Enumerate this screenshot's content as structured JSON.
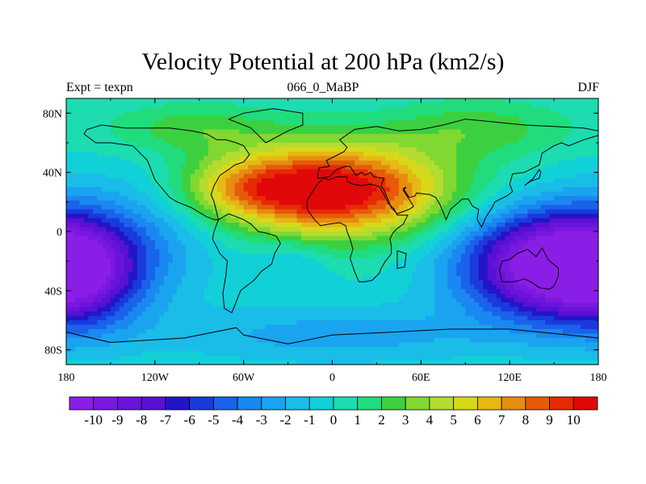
{
  "chart_data": {
    "type": "heatmap",
    "title": "Velocity Potential at 200 hPa (km2/s)",
    "left_string": "Expt = texpn",
    "center_string": "066_0_MaBP",
    "right_string": "DJF",
    "x_ticks": [
      "180",
      "120W",
      "60W",
      "0",
      "60E",
      "120E",
      "180"
    ],
    "y_ticks": [
      "80N",
      "40N",
      "0",
      "40S",
      "80S"
    ],
    "xlim": [
      -180,
      180
    ],
    "ylim": [
      -90,
      90
    ],
    "colorbar_levels": [
      -10,
      -9,
      -8,
      -7,
      -6,
      -5,
      -4,
      -3,
      -2,
      -1,
      0,
      1,
      2,
      3,
      4,
      5,
      6,
      7,
      8,
      9,
      10
    ],
    "colorbar_labels": [
      "-10",
      "-9",
      "-8",
      "-7",
      "-6",
      "-5",
      "-4",
      "-3",
      "-2",
      "-1",
      "0",
      "1",
      "2",
      "3",
      "4",
      "5",
      "6",
      "7",
      "8",
      "9",
      "10"
    ],
    "centers": [
      {
        "lon": 0,
        "lat": 28,
        "value": 10
      },
      {
        "lon": 150,
        "lat": -22,
        "value": -10
      },
      {
        "lon": -170,
        "lat": -30,
        "value": -9
      }
    ]
  },
  "colors": {
    "palette": [
      "#8a1ee6",
      "#7a18e0",
      "#6a14da",
      "#5a10d4",
      "#2414c8",
      "#1a3adc",
      "#1a62ea",
      "#1a88f0",
      "#1aa4f0",
      "#1abce8",
      "#12d0d8",
      "#1cdcb0",
      "#20dc7c",
      "#3cd040",
      "#80d830",
      "#b4dc30",
      "#d8d81a",
      "#e6b814",
      "#e68c10",
      "#e65a0a",
      "#e62a06",
      "#e00808"
    ]
  }
}
